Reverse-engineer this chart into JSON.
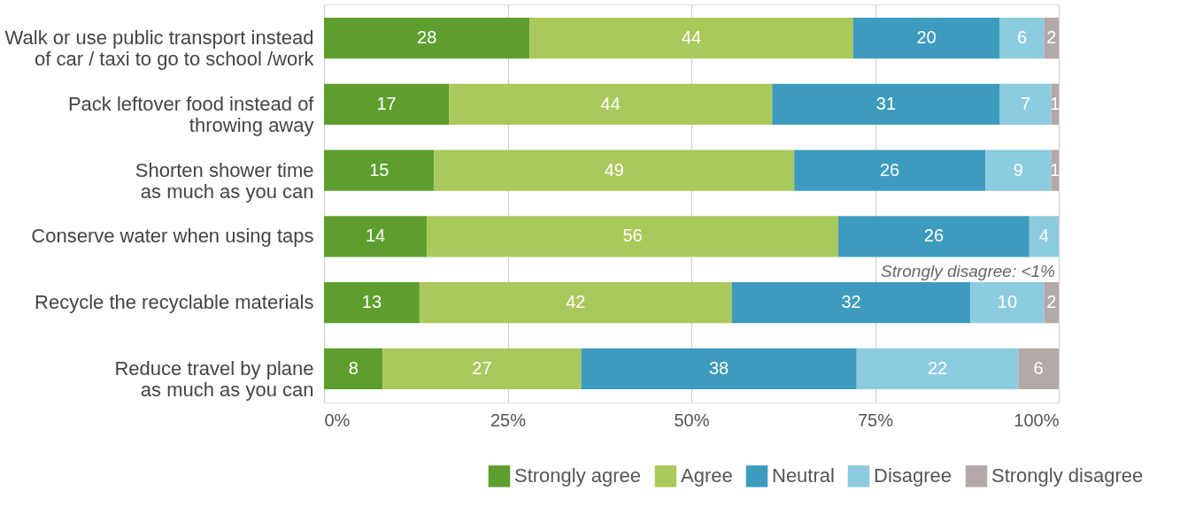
{
  "chart_data": {
    "type": "bar",
    "orientation": "horizontal",
    "stacked": true,
    "categories": [
      "Walk or use public transport instead\nof car / taxi to go to school /work",
      "Pack leftover food instead of\nthrowing away",
      "Shorten shower time\nas much as you can",
      "Conserve water when using taps",
      "Recycle the recyclable materials",
      "Reduce travel by plane\nas much as you can"
    ],
    "series": [
      {
        "name": "Strongly agree",
        "color": "#5e9e2e",
        "values": [
          28,
          17,
          15,
          14,
          13,
          8
        ],
        "value_labels": [
          "28",
          "17",
          "15",
          "14",
          "13",
          "8"
        ]
      },
      {
        "name": "Agree",
        "color": "#a9c95b",
        "values": [
          44,
          44,
          49,
          56,
          42.5,
          27
        ],
        "value_labels": [
          "44",
          "44",
          "49",
          "56",
          "42",
          "27"
        ]
      },
      {
        "name": "Neutral",
        "color": "#3d9cbd",
        "values": [
          20,
          31,
          26,
          26,
          32.5,
          37.5
        ],
        "value_labels": [
          "20",
          "31",
          "26",
          "26",
          "32",
          "38"
        ]
      },
      {
        "name": "Disagree",
        "color": "#8dcbe0",
        "values": [
          6,
          7,
          9,
          4,
          10,
          22
        ],
        "value_labels": [
          "6",
          "7",
          "9",
          "4",
          "10",
          "22"
        ]
      },
      {
        "name": "Strongly disagree",
        "color": "#b3a9a6",
        "values": [
          2,
          1,
          1,
          null,
          2,
          5.5
        ],
        "value_labels": [
          "2",
          "1",
          "1",
          null,
          "2",
          "6"
        ]
      }
    ],
    "xlim": [
      0,
      100
    ],
    "xticks": [
      {
        "value": 0,
        "label": "0%"
      },
      {
        "value": 25,
        "label": "25%"
      },
      {
        "value": 50,
        "label": "50%"
      },
      {
        "value": 75,
        "label": "75%"
      },
      {
        "value": 100,
        "label": "100%"
      }
    ],
    "grid": "x",
    "legend": "bottom right",
    "annotations": [
      {
        "text": "Strongly disagree: <1%",
        "x": 100,
        "y": "Conserve water when using taps"
      }
    ]
  }
}
